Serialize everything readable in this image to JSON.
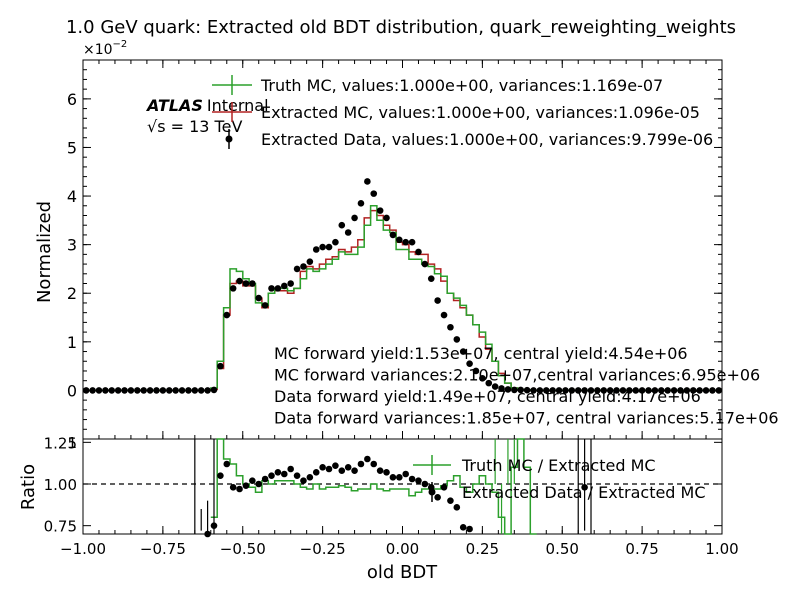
{
  "title": "1.0 GeV quark: Extracted old BDT distribution, quark_reweighting_weights",
  "top_panel": {
    "ylabel": "Normalized",
    "scale_label": "×10",
    "scale_exponent": "−2",
    "ylim": [
      -1,
      6.8
    ],
    "yticks": [
      0,
      1,
      2,
      3,
      4,
      5,
      6
    ],
    "ytick_labels": [
      "0",
      "1",
      "2",
      "3",
      "4",
      "5",
      "6"
    ],
    "atlas_label": "ATLAS",
    "atlas_sublabel": "Internal",
    "energy_label": "√s = 13 TeV",
    "legend": [
      {
        "label": "Truth MC, values:1.000e+00, variances:1.169e-07",
        "color": "#2ca02c",
        "style": "step"
      },
      {
        "label": "Extracted MC, values:1.000e+00, variances:1.096e-05",
        "color": "#b22222",
        "style": "step"
      },
      {
        "label": "Extracted Data, values:1.000e+00, variances:9.799e-06",
        "color": "#000000",
        "style": "marker"
      }
    ],
    "annotations": [
      "MC forward yield:1.53e+07, central yield:4.54e+06",
      "MC forward variances:2.10e+07,central variances:6.95e+06",
      "Data forward yield:1.49e+07, central yield:4.17e+06",
      "Data forward variances:1.85e+07, central variances:5.17e+06"
    ]
  },
  "ratio_panel": {
    "ylabel": "Ratio",
    "ylim": [
      0.7,
      1.27
    ],
    "yticks": [
      0.75,
      1.0,
      1.25
    ],
    "ytick_labels": [
      "0.75",
      "1.00",
      "1.25"
    ],
    "top_partial_tick": "1",
    "reference_line": 1.0,
    "legend": [
      {
        "label": "Truth MC / Extracted MC",
        "color": "#2ca02c"
      },
      {
        "label": "Extracted Data / Extracted MC",
        "color": "#000000"
      }
    ]
  },
  "xaxis": {
    "xlabel": "old BDT",
    "xlim": [
      -1.0,
      1.0
    ],
    "xticks": [
      -1.0,
      -0.75,
      -0.5,
      -0.25,
      0.0,
      0.25,
      0.5,
      0.75,
      1.0
    ],
    "xtick_labels": [
      "−1.00",
      "−0.75",
      "−0.50",
      "−0.25",
      "0.00",
      "0.25",
      "0.50",
      "0.75",
      "1.00"
    ]
  },
  "chart_data": {
    "type": "line",
    "x": [
      -0.99,
      -0.97,
      -0.95,
      -0.93,
      -0.91,
      -0.89,
      -0.87,
      -0.85,
      -0.83,
      -0.81,
      -0.79,
      -0.77,
      -0.75,
      -0.73,
      -0.71,
      -0.69,
      -0.67,
      -0.65,
      -0.63,
      -0.61,
      -0.59,
      -0.57,
      -0.55,
      -0.53,
      -0.51,
      -0.49,
      -0.47,
      -0.45,
      -0.43,
      -0.41,
      -0.39,
      -0.37,
      -0.35,
      -0.33,
      -0.31,
      -0.29,
      -0.27,
      -0.25,
      -0.23,
      -0.21,
      -0.19,
      -0.17,
      -0.15,
      -0.13,
      -0.11,
      -0.09,
      -0.07,
      -0.05,
      -0.03,
      -0.01,
      0.01,
      0.03,
      0.05,
      0.07,
      0.09,
      0.11,
      0.13,
      0.15,
      0.17,
      0.19,
      0.21,
      0.23,
      0.25,
      0.27,
      0.29,
      0.31,
      0.33,
      0.35,
      0.37,
      0.39,
      0.41,
      0.43,
      0.45,
      0.47,
      0.49,
      0.51,
      0.53,
      0.55,
      0.57,
      0.59,
      0.61,
      0.63,
      0.65,
      0.67,
      0.69,
      0.71,
      0.73,
      0.75,
      0.77,
      0.79,
      0.81,
      0.83,
      0.85,
      0.87,
      0.89,
      0.91,
      0.93,
      0.95,
      0.97,
      0.99
    ],
    "series": [
      {
        "name": "Truth MC, values:1.000e+00, variances:1.169e-07",
        "values": [
          0,
          0,
          0,
          0,
          0,
          0,
          0,
          0,
          0,
          0,
          0,
          0,
          0,
          0,
          0,
          0,
          0,
          0,
          0,
          0,
          0.05,
          0.6,
          1.7,
          2.5,
          2.45,
          2.3,
          2.2,
          1.8,
          1.75,
          2.0,
          2.1,
          2.1,
          2.05,
          2.1,
          2.3,
          2.5,
          2.45,
          2.5,
          2.6,
          2.7,
          2.85,
          2.8,
          2.8,
          2.95,
          3.4,
          3.8,
          3.5,
          3.3,
          3.25,
          2.9,
          2.9,
          2.7,
          2.7,
          2.6,
          2.55,
          2.4,
          2.35,
          2.0,
          1.9,
          1.75,
          1.55,
          1.35,
          1.2,
          0.95,
          0.6,
          0.3,
          0.15,
          0.05,
          0.02,
          0.01,
          0,
          0,
          0,
          0,
          0,
          0,
          0,
          0,
          0,
          0,
          0,
          0,
          0,
          0,
          0,
          0,
          0,
          0,
          0,
          0,
          0,
          0,
          0,
          0,
          0,
          0,
          0,
          0,
          0,
          0
        ]
      },
      {
        "name": "Extracted MC, values:1.000e+00, variances:1.096e-05",
        "values": [
          0,
          0,
          0,
          0,
          0,
          0,
          0,
          0,
          0,
          0,
          0,
          0,
          0,
          0,
          0,
          0,
          0,
          0,
          0,
          0,
          0.02,
          0.45,
          1.55,
          2.2,
          2.25,
          2.15,
          2.15,
          1.9,
          1.7,
          2.0,
          2.05,
          2.05,
          2.0,
          2.1,
          2.45,
          2.55,
          2.5,
          2.6,
          2.7,
          2.75,
          2.9,
          2.85,
          2.95,
          3.1,
          3.55,
          3.7,
          3.6,
          3.4,
          3.3,
          3.05,
          3.0,
          2.85,
          2.8,
          2.8,
          2.6,
          2.5,
          2.25,
          2.0,
          1.85,
          1.7,
          1.55,
          1.35,
          1.1,
          0.85,
          0.6,
          0.35,
          0.15,
          0.05,
          0.02,
          0.01,
          0,
          0,
          0,
          0,
          0,
          0,
          0,
          0,
          0,
          0,
          0,
          0,
          0,
          0,
          0,
          0,
          0,
          0,
          0,
          0,
          0,
          0,
          0,
          0,
          0,
          0,
          0,
          0,
          0,
          0
        ]
      },
      {
        "name": "Extracted Data, values:1.000e+00, variances:9.799e-06",
        "values": [
          0,
          0,
          0,
          0,
          0,
          0,
          0,
          0,
          0,
          0,
          0,
          0,
          0,
          0,
          0,
          0,
          0,
          0,
          0,
          0,
          0.01,
          0.5,
          1.55,
          2.1,
          2.25,
          2.2,
          2.2,
          1.9,
          1.75,
          2.1,
          2.1,
          2.15,
          2.2,
          2.5,
          2.55,
          2.65,
          2.9,
          2.95,
          2.95,
          3.05,
          3.4,
          3.25,
          3.55,
          3.85,
          4.3,
          4.05,
          3.7,
          3.55,
          3.2,
          3.1,
          3.05,
          3.05,
          2.85,
          2.6,
          2.3,
          1.85,
          1.55,
          1.3,
          1.05,
          0.8,
          0.55,
          0.4,
          0.25,
          0.15,
          0.08,
          0.04,
          0.02,
          0.01,
          0.01,
          0.005,
          0,
          0,
          0,
          0,
          0,
          0,
          0,
          0,
          0,
          0,
          0,
          0,
          0,
          0,
          0,
          0,
          0,
          0,
          0,
          0,
          0,
          0,
          0,
          0,
          0,
          0,
          0,
          0,
          0,
          0
        ]
      }
    ],
    "ratio_series": [
      {
        "name": "Truth MC / Extracted MC",
        "values": [
          null,
          null,
          null,
          null,
          null,
          null,
          null,
          null,
          null,
          null,
          null,
          null,
          null,
          null,
          null,
          null,
          null,
          null,
          null,
          null,
          0.8,
          1.35,
          1.15,
          1.12,
          1.05,
          1.0,
          0.98,
          0.95,
          1.02,
          1.0,
          1.02,
          1.02,
          1.02,
          1.0,
          0.98,
          0.97,
          1.0,
          0.97,
          0.98,
          0.98,
          0.99,
          0.98,
          0.96,
          0.97,
          0.97,
          1.0,
          0.97,
          0.96,
          0.97,
          0.97,
          0.97,
          0.93,
          0.95,
          0.97,
          0.97,
          0.97,
          0.99,
          1.02,
          1.05,
          0.98,
          0.95,
          1.0,
          1.05,
          1.0,
          0.95,
          0.8,
          0.7,
          1.1,
          1.3,
          1.1,
          0.7,
          null,
          null,
          null,
          null,
          null,
          null,
          null,
          null,
          null,
          null,
          null,
          null,
          null,
          null,
          null,
          null,
          null,
          null,
          null,
          null,
          null,
          null,
          null,
          null,
          null,
          null,
          null,
          null,
          null
        ]
      },
      {
        "name": "Extracted Data / Extracted MC",
        "values": [
          null,
          null,
          null,
          null,
          null,
          null,
          null,
          null,
          null,
          null,
          null,
          null,
          null,
          null,
          null,
          null,
          null,
          null,
          0.5,
          0.7,
          0.75,
          1.05,
          1.12,
          0.98,
          0.97,
          0.99,
          1.02,
          1.0,
          1.03,
          1.05,
          1.07,
          1.06,
          1.09,
          1.05,
          1.02,
          1.04,
          1.07,
          1.1,
          1.09,
          1.11,
          1.08,
          1.1,
          1.08,
          1.12,
          1.15,
          1.12,
          1.08,
          1.07,
          1.04,
          1.04,
          1.06,
          1.03,
          1.02,
          1.0,
          0.98,
          0.92,
          0.98,
          0.9,
          0.86,
          0.74,
          0.73,
          null,
          null,
          null,
          null,
          null,
          null,
          null,
          null,
          null,
          null,
          null,
          null,
          null,
          null,
          null,
          null,
          null,
          0.98,
          null,
          null,
          null,
          null,
          null,
          null,
          null,
          null,
          null,
          null,
          null,
          null,
          null,
          null,
          null,
          null,
          null,
          null,
          null,
          null,
          null
        ]
      }
    ]
  }
}
